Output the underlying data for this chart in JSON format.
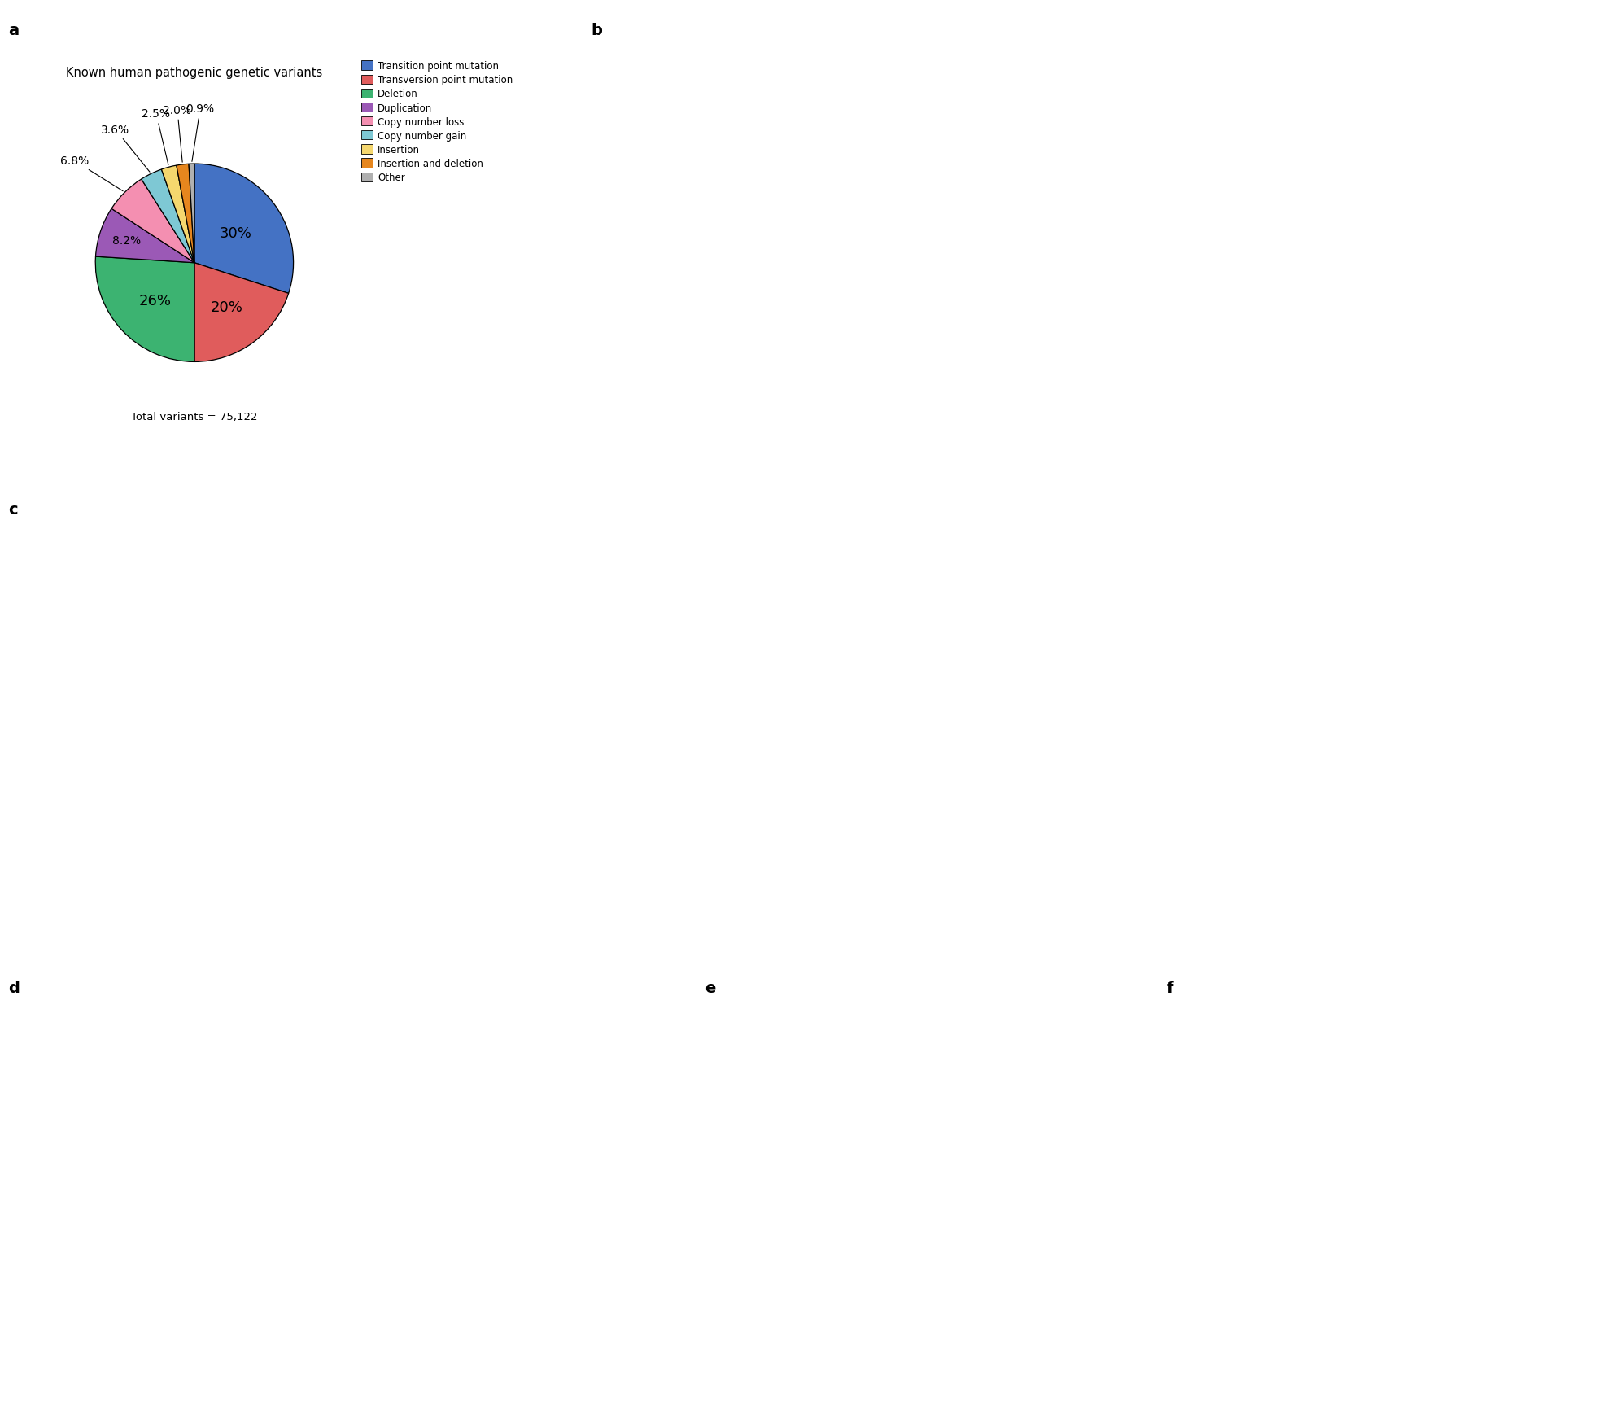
{
  "pie_values": [
    30,
    20,
    26,
    8.2,
    6.8,
    3.6,
    2.5,
    2.0,
    0.9
  ],
  "pie_labels_inside": [
    "30%",
    "20%",
    "26%",
    "8.2%"
  ],
  "pie_labels_outside": [
    "6.8%",
    "3.6%",
    "2.5%",
    "2.0%",
    "0.9%"
  ],
  "pie_colors": [
    "#4472C4",
    "#E05C5C",
    "#3CB371",
    "#9B59B6",
    "#F48FB1",
    "#7EC8D4",
    "#F5D76E",
    "#E6861E",
    "#B0B0B0"
  ],
  "legend_labels": [
    "Transition point mutation",
    "Transversion point mutation",
    "Deletion",
    "Duplication",
    "Copy number loss",
    "Copy number gain",
    "Insertion",
    "Insertion and deletion",
    "Other"
  ],
  "title": "Known human pathogenic genetic variants",
  "subtitle": "Total variants = 75,122",
  "panel_label_a": "a",
  "panel_label_b": "b",
  "panel_label_c": "c",
  "panel_label_d": "d",
  "panel_label_e": "e",
  "panel_label_f": "f",
  "startangle": 90,
  "figsize": [
    19.91,
    17.31
  ],
  "dpi": 100,
  "bg_color": "#FFFFFF"
}
